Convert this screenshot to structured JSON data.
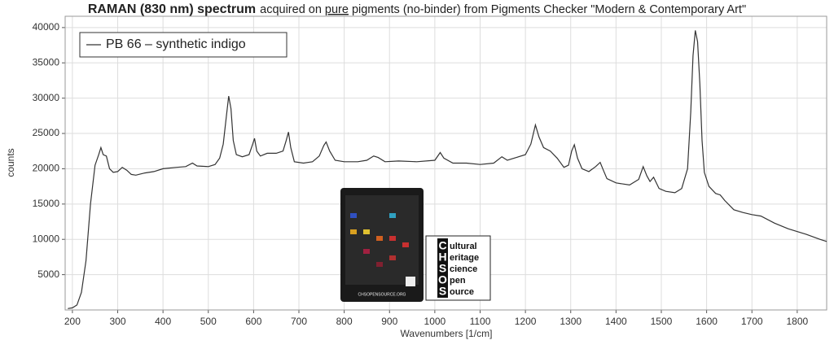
{
  "chart_data": {
    "type": "line",
    "title": [
      "RAMAN (830 nm) spectrum",
      "acquired on",
      "pure",
      "pigments (no-binder) from Pigments Checker \"Modern & Contemporary Art\""
    ],
    "x_label": "Wavenumbers [1/cm]",
    "y_label": "counts",
    "xlim": [
      184,
      1865
    ],
    "ylim": [
      0,
      41600
    ],
    "xticks": [
      200,
      300,
      400,
      500,
      600,
      700,
      800,
      900,
      1000,
      1100,
      1200,
      1300,
      1400,
      1500,
      1600,
      1700,
      1800
    ],
    "yticks": [
      5000,
      10000,
      15000,
      20000,
      25000,
      30000,
      35000,
      40000
    ],
    "grid": true,
    "legend": "top-left",
    "x": [
      190,
      200,
      210,
      220,
      230,
      240,
      250,
      258,
      263,
      268,
      275,
      282,
      290,
      300,
      310,
      320,
      330,
      340,
      360,
      380,
      400,
      430,
      450,
      465,
      475,
      500,
      515,
      525,
      533,
      540,
      545,
      550,
      555,
      562,
      575,
      590,
      598,
      602,
      607,
      615,
      630,
      650,
      665,
      672,
      677,
      682,
      690,
      710,
      730,
      745,
      755,
      760,
      768,
      780,
      800,
      830,
      850,
      865,
      875,
      890,
      920,
      960,
      1000,
      1012,
      1020,
      1040,
      1070,
      1100,
      1130,
      1148,
      1160,
      1180,
      1200,
      1212,
      1222,
      1230,
      1240,
      1255,
      1270,
      1285,
      1295,
      1302,
      1308,
      1315,
      1325,
      1340,
      1355,
      1365,
      1372,
      1380,
      1400,
      1430,
      1450,
      1460,
      1468,
      1475,
      1483,
      1495,
      1510,
      1530,
      1545,
      1558,
      1565,
      1570,
      1575,
      1580,
      1585,
      1590,
      1595,
      1605,
      1620,
      1630,
      1640,
      1660,
      1680,
      1700,
      1720,
      1750,
      1780,
      1820,
      1850,
      1865
    ],
    "series": [
      {
        "name": "PB 66 – synthetic indigo",
        "color": "#333333",
        "values": [
          200,
          300,
          700,
          2500,
          7000,
          15000,
          20500,
          22000,
          23000,
          22000,
          21800,
          20000,
          19500,
          19600,
          20200,
          19800,
          19200,
          19100,
          19400,
          19600,
          20000,
          20200,
          20300,
          20800,
          20400,
          20300,
          20600,
          21500,
          23500,
          27500,
          30300,
          28500,
          24000,
          22000,
          21700,
          22000,
          23500,
          24300,
          22500,
          21800,
          22200,
          22200,
          22500,
          24000,
          25200,
          23000,
          21000,
          20800,
          21000,
          21800,
          23300,
          23800,
          22500,
          21200,
          21000,
          21000,
          21200,
          21800,
          21600,
          21000,
          21100,
          21000,
          21200,
          22300,
          21500,
          20800,
          20800,
          20600,
          20800,
          21700,
          21200,
          21600,
          22000,
          23500,
          26200,
          24500,
          23000,
          22500,
          21500,
          20200,
          20500,
          22500,
          23400,
          21500,
          20000,
          19600,
          20300,
          20900,
          19800,
          18600,
          18000,
          17700,
          18500,
          20300,
          19000,
          18200,
          18800,
          17200,
          16800,
          16600,
          17200,
          20000,
          28000,
          36000,
          39600,
          38000,
          32000,
          24000,
          19500,
          17500,
          16500,
          16300,
          15500,
          14200,
          13800,
          13500,
          13300,
          12300,
          11500,
          10700,
          10000,
          9700
        ]
      }
    ]
  },
  "logo": {
    "letters": [
      "C",
      "H",
      "S",
      "O",
      "S"
    ],
    "words": [
      "ultural",
      "eritage",
      "cience",
      "pen",
      "ource"
    ],
    "card_text": "CHSOPENSOURCE.ORG"
  }
}
